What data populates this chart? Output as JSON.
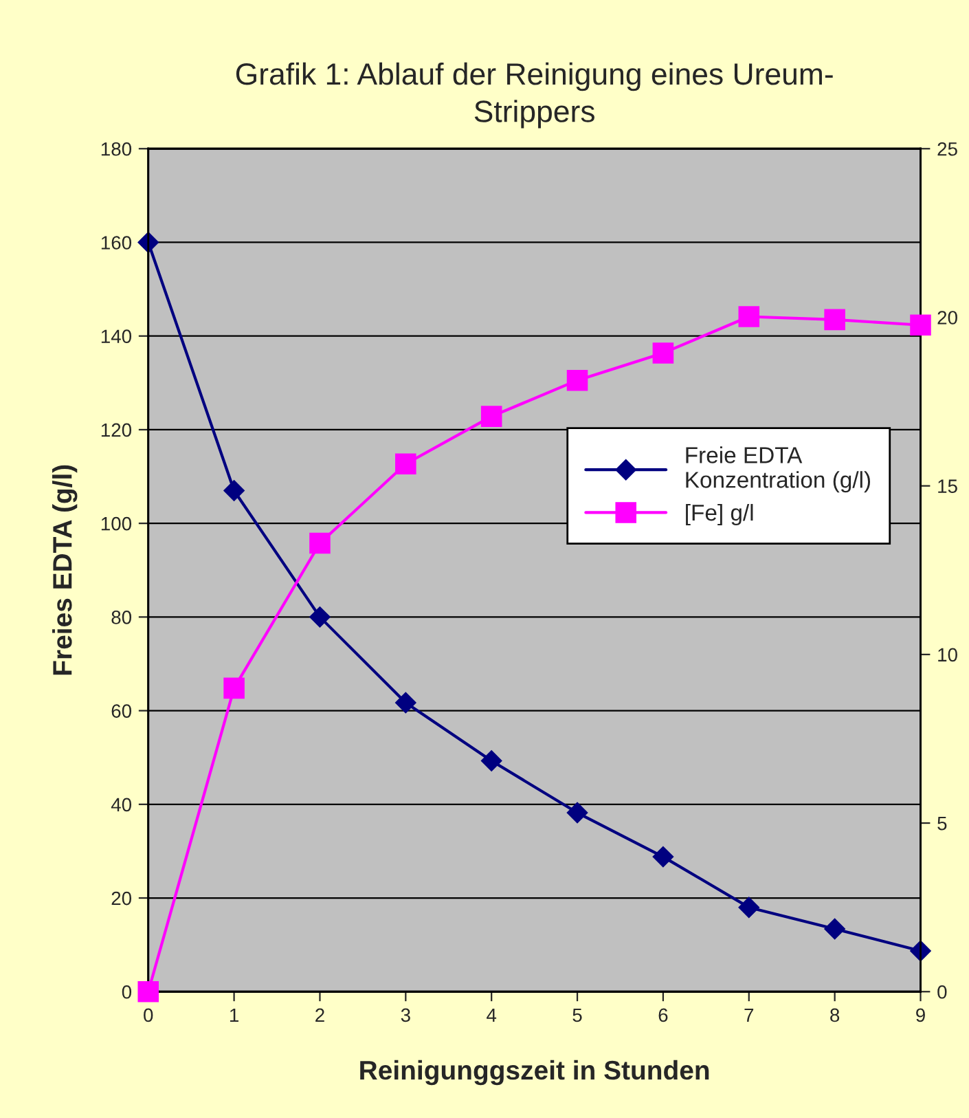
{
  "chart_data": {
    "type": "line",
    "title": "Grafik 1: Ablauf der Reinigung eines Ureum-\nStrippers",
    "xlabel": "Reinigunggszeit in Stunden",
    "ylabel": "Freies EDTA (g/l)",
    "x": [
      0,
      1,
      2,
      3,
      4,
      5,
      6,
      7,
      8,
      9
    ],
    "series": [
      {
        "name": "Freie EDTA\nKonzentration (g/l)",
        "color": "#000080",
        "marker": "diamond",
        "values": [
          160,
          107,
          80,
          61.7,
          49.3,
          38.2,
          28.8,
          18,
          13.4,
          8.7
        ]
      },
      {
        "name": "[Fe] g/l",
        "color": "#ff00ff",
        "marker": "square",
        "axis": "y2",
        "values": [
          0,
          9.0,
          13.3,
          15.65,
          17.06,
          18.13,
          18.94,
          20.02,
          19.93,
          19.77
        ]
      }
    ],
    "xlim": [
      0,
      9
    ],
    "xticks": [
      0,
      1,
      2,
      3,
      4,
      5,
      6,
      7,
      8,
      9
    ],
    "ylim": [
      0,
      180
    ],
    "yticks": [
      0,
      20,
      40,
      60,
      80,
      100,
      120,
      140,
      160,
      180
    ],
    "y2lim": [
      0,
      25
    ],
    "y2ticks": [
      0,
      5,
      10,
      15,
      20,
      25
    ],
    "grid": "y",
    "legend": "right",
    "line_style": "solid"
  }
}
